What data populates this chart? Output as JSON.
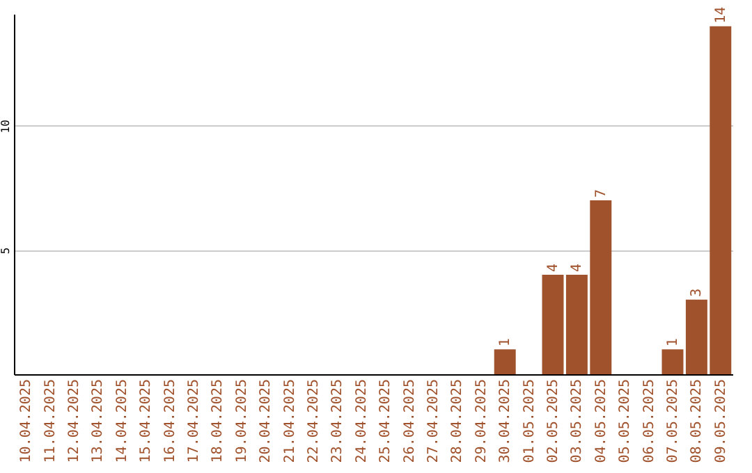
{
  "chart_data": {
    "type": "bar",
    "categories": [
      "10.04.2025",
      "11.04.2025",
      "12.04.2025",
      "13.04.2025",
      "14.04.2025",
      "15.04.2025",
      "16.04.2025",
      "17.04.2025",
      "18.04.2025",
      "19.04.2025",
      "20.04.2025",
      "21.04.2025",
      "22.04.2025",
      "23.04.2025",
      "24.04.2025",
      "25.04.2025",
      "26.04.2025",
      "27.04.2025",
      "28.04.2025",
      "29.04.2025",
      "30.04.2025",
      "01.05.2025",
      "02.05.2025",
      "03.05.2025",
      "04.05.2025",
      "05.05.2025",
      "06.05.2025",
      "07.05.2025",
      "08.05.2025",
      "09.05.2025"
    ],
    "values": [
      null,
      null,
      null,
      null,
      null,
      null,
      null,
      null,
      null,
      null,
      null,
      null,
      null,
      null,
      null,
      null,
      null,
      null,
      null,
      null,
      1,
      null,
      4,
      4,
      7,
      null,
      null,
      1,
      3,
      14
    ],
    "color": "#a0522d",
    "ylim": [
      0,
      14.5
    ],
    "yticks": [
      5,
      10
    ],
    "grid": "y",
    "data_labels": true
  }
}
